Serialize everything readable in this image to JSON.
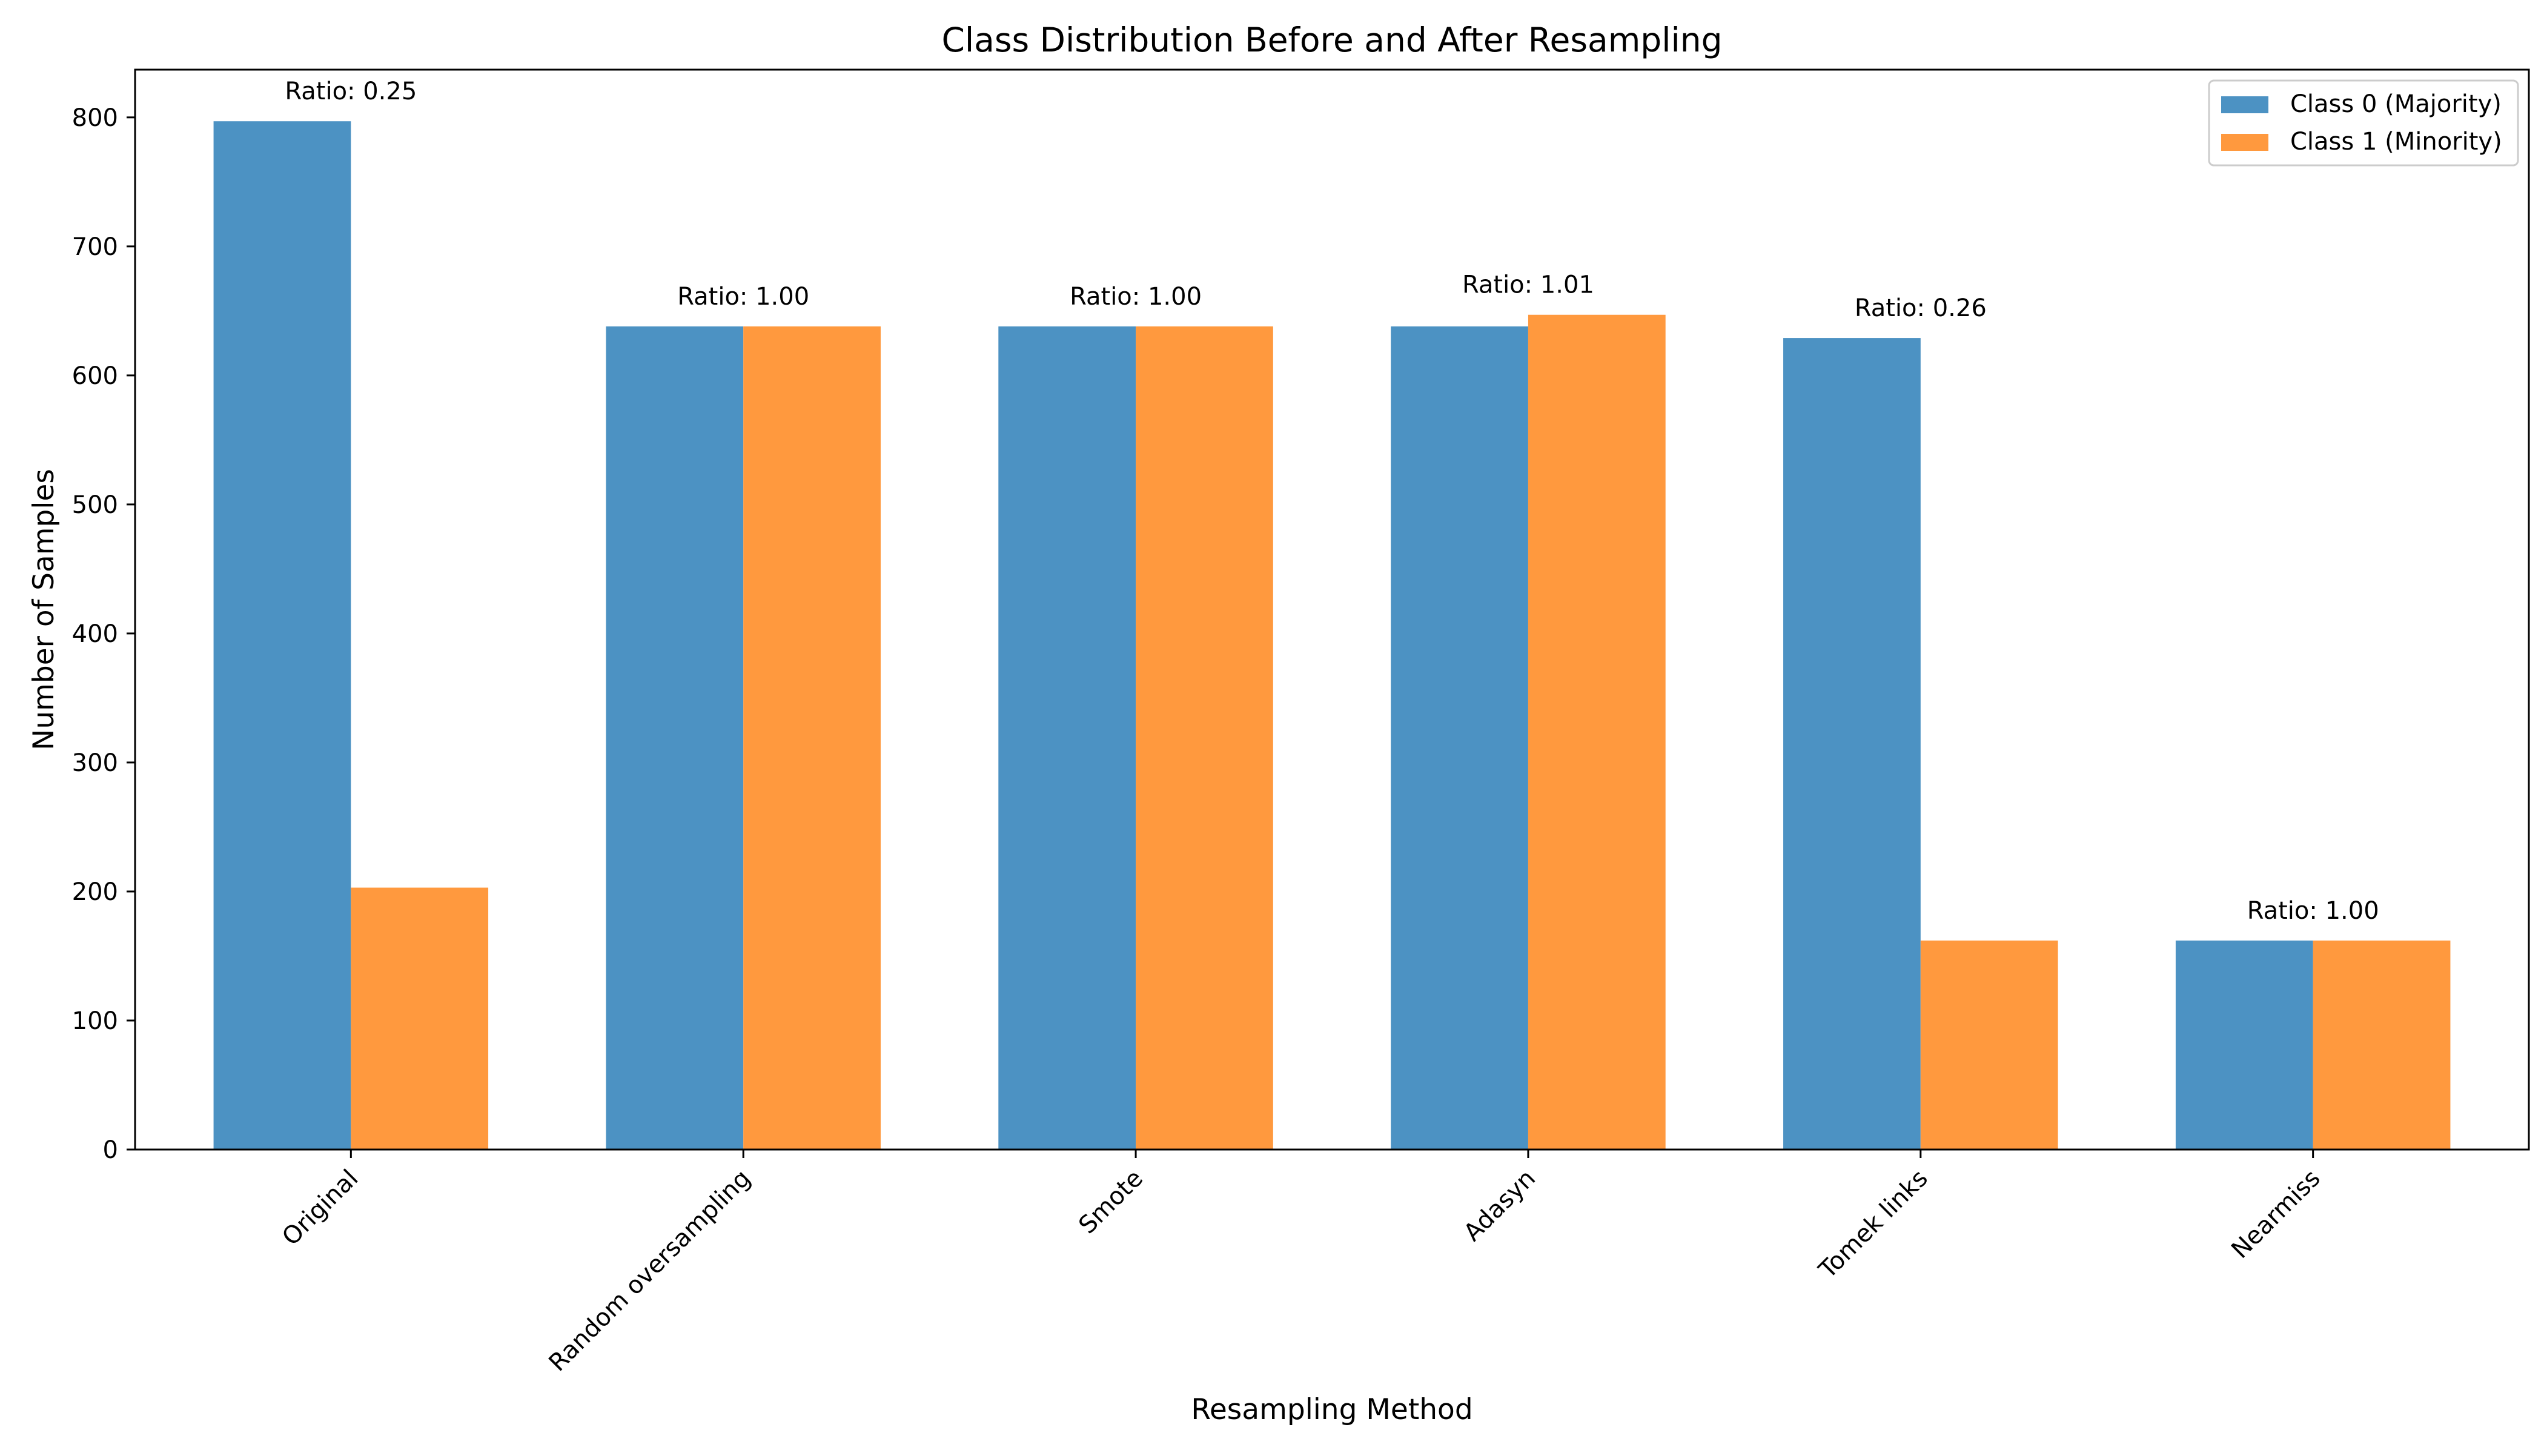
{
  "chart_data": {
    "type": "bar",
    "title": "Class Distribution Before and After Resampling",
    "xlabel": "Resampling Method",
    "ylabel": "Number of Samples",
    "categories": [
      "Original",
      "Random oversampling",
      "Smote",
      "Adasyn",
      "Tomek links",
      "Nearmiss"
    ],
    "series": [
      {
        "name": "Class 0 (Majority)",
        "color": "#4c92c3",
        "values": [
          797,
          638,
          638,
          638,
          629,
          162
        ]
      },
      {
        "name": "Class 1 (Minority)",
        "color": "#ff993e",
        "values": [
          203,
          638,
          638,
          647,
          162,
          162
        ]
      }
    ],
    "annotations": [
      "Ratio: 0.25",
      "Ratio: 1.00",
      "Ratio: 1.00",
      "Ratio: 1.01",
      "Ratio: 0.26",
      "Ratio: 1.00"
    ],
    "ylim": [
      0,
      837
    ],
    "yticks": [
      0,
      100,
      200,
      300,
      400,
      500,
      600,
      700,
      800
    ],
    "grid": false,
    "legend_position": "top-right",
    "xtick_rotation": 45
  }
}
